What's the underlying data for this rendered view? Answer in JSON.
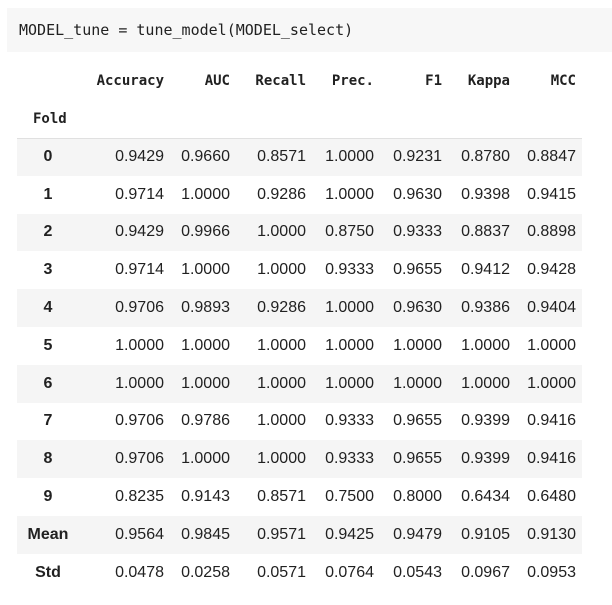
{
  "code_cell": {
    "source": "MODEL_tune = tune_model(MODEL_select)"
  },
  "table": {
    "index_name": "Fold",
    "columns": [
      "Accuracy",
      "AUC",
      "Recall",
      "Prec.",
      "F1",
      "Kappa",
      "MCC"
    ],
    "rows": [
      {
        "index": "0",
        "values": [
          "0.9429",
          "0.9660",
          "0.8571",
          "1.0000",
          "0.9231",
          "0.8780",
          "0.8847"
        ]
      },
      {
        "index": "1",
        "values": [
          "0.9714",
          "1.0000",
          "0.9286",
          "1.0000",
          "0.9630",
          "0.9398",
          "0.9415"
        ]
      },
      {
        "index": "2",
        "values": [
          "0.9429",
          "0.9966",
          "1.0000",
          "0.8750",
          "0.9333",
          "0.8837",
          "0.8898"
        ]
      },
      {
        "index": "3",
        "values": [
          "0.9714",
          "1.0000",
          "1.0000",
          "0.9333",
          "0.9655",
          "0.9412",
          "0.9428"
        ]
      },
      {
        "index": "4",
        "values": [
          "0.9706",
          "0.9893",
          "0.9286",
          "1.0000",
          "0.9630",
          "0.9386",
          "0.9404"
        ]
      },
      {
        "index": "5",
        "values": [
          "1.0000",
          "1.0000",
          "1.0000",
          "1.0000",
          "1.0000",
          "1.0000",
          "1.0000"
        ]
      },
      {
        "index": "6",
        "values": [
          "1.0000",
          "1.0000",
          "1.0000",
          "1.0000",
          "1.0000",
          "1.0000",
          "1.0000"
        ]
      },
      {
        "index": "7",
        "values": [
          "0.9706",
          "0.9786",
          "1.0000",
          "0.9333",
          "0.9655",
          "0.9399",
          "0.9416"
        ]
      },
      {
        "index": "8",
        "values": [
          "0.9706",
          "1.0000",
          "1.0000",
          "0.9333",
          "0.9655",
          "0.9399",
          "0.9416"
        ]
      },
      {
        "index": "9",
        "values": [
          "0.8235",
          "0.9143",
          "0.8571",
          "0.7500",
          "0.8000",
          "0.6434",
          "0.6480"
        ]
      },
      {
        "index": "Mean",
        "values": [
          "0.9564",
          "0.9845",
          "0.9571",
          "0.9425",
          "0.9479",
          "0.9105",
          "0.9130"
        ]
      },
      {
        "index": "Std",
        "values": [
          "0.0478",
          "0.0258",
          "0.0571",
          "0.0764",
          "0.0543",
          "0.0967",
          "0.0953"
        ]
      }
    ]
  }
}
